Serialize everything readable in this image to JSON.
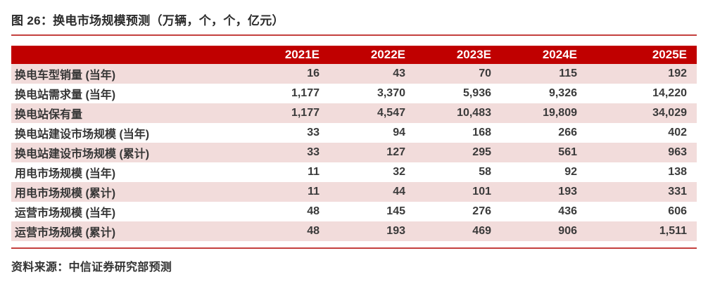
{
  "figure": {
    "title": "图 26：换电市场规模预测（万辆，个，个，亿元）",
    "source": "资料来源：中信证券研究部预测"
  },
  "colors": {
    "header_bg": "#c00000",
    "header_text": "#ffffff",
    "row_alt_bg": "#f2dcdb",
    "row_bg": "#ffffff",
    "rule_red": "#c4403e",
    "body_text": "#3a3a3a"
  },
  "chart_data": {
    "type": "table",
    "title": "图 26：换电市场规模预测（万辆，个，个，亿元）",
    "columns": [
      "",
      "2021E",
      "2022E",
      "2023E",
      "2024E",
      "2025E"
    ],
    "rows": [
      {
        "label": "换电车型销量 (当年)",
        "values": [
          "16",
          "43",
          "70",
          "115",
          "192"
        ]
      },
      {
        "label": "换电站需求量 (当年)",
        "values": [
          "1,177",
          "3,370",
          "5,936",
          "9,326",
          "14,220"
        ]
      },
      {
        "label": "换电站保有量",
        "values": [
          "1,177",
          "4,547",
          "10,483",
          "19,809",
          "34,029"
        ]
      },
      {
        "label": "换电站建设市场规模 (当年)",
        "values": [
          "33",
          "94",
          "168",
          "266",
          "402"
        ]
      },
      {
        "label": "换电站建设市场规模 (累计)",
        "values": [
          "33",
          "127",
          "295",
          "561",
          "963"
        ]
      },
      {
        "label": "用电市场规模 (当年)",
        "values": [
          "11",
          "32",
          "58",
          "92",
          "138"
        ]
      },
      {
        "label": "用电市场规模 (累计)",
        "values": [
          "11",
          "44",
          "101",
          "193",
          "331"
        ]
      },
      {
        "label": "运营市场规模 (当年)",
        "values": [
          "48",
          "145",
          "276",
          "436",
          "606"
        ]
      },
      {
        "label": "运营市场规模 (累计)",
        "values": [
          "48",
          "193",
          "469",
          "906",
          "1,511"
        ]
      }
    ],
    "source": "资料来源：中信证券研究部预测"
  }
}
